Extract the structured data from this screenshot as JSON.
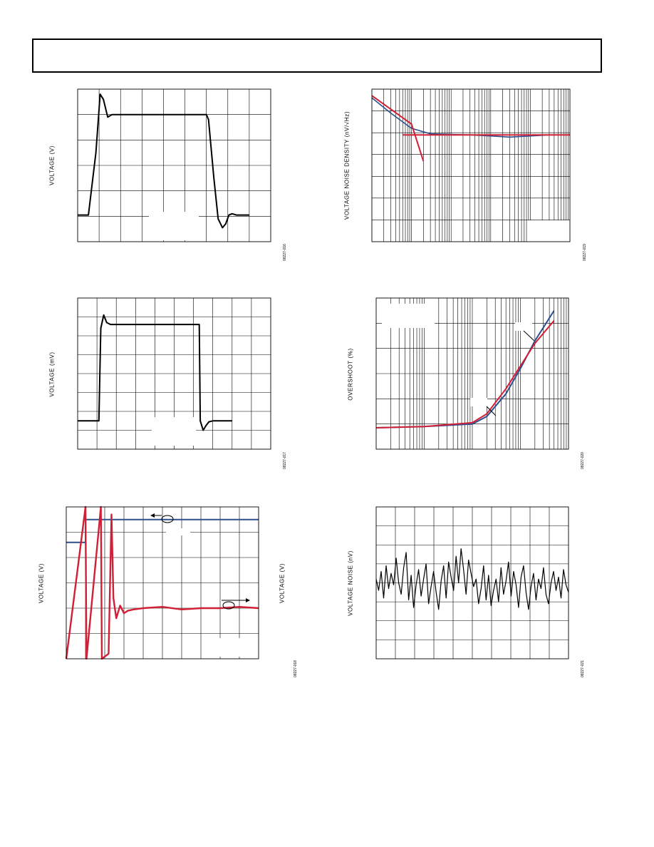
{
  "colors": {
    "trace_black": "#000000",
    "trace_red": "#d11f36",
    "trace_blue": "#2d4f8e"
  },
  "fig_ids": {
    "c1": "08227-016",
    "c2": "08227-019",
    "c3": "08227-017",
    "c4": "08227-020",
    "c5": "08227-018",
    "c6": "08227-021"
  },
  "chart_data": [
    {
      "id": "c1",
      "type": "line",
      "title": "",
      "xlabel": "",
      "ylabel": "VOLTAGE (V)",
      "grid": true,
      "x_divisions": 8,
      "y_divisions": 6,
      "series": [
        {
          "x": [
            0,
            0.5,
            0.85,
            1.05,
            1.2,
            1.4,
            1.6,
            6.0,
            6.1,
            6.35,
            6.55,
            6.75,
            6.9,
            7.05,
            7.2,
            7.4,
            8.0
          ],
          "y": [
            1.05,
            1.05,
            3.5,
            5.8,
            5.6,
            4.9,
            5.0,
            5.0,
            4.8,
            2.5,
            0.9,
            0.55,
            0.7,
            1.05,
            1.1,
            1.05,
            1.05
          ]
        }
      ]
    },
    {
      "id": "c2",
      "type": "line",
      "title": "",
      "xlabel": "",
      "ylabel": "VOLTAGE NOISE DENSITY (nV/√Hz)",
      "grid": true,
      "log_x": true,
      "xlim": [
        1,
        100000
      ],
      "y_divisions": 7,
      "series": [
        {
          "x": [
            1,
            3,
            10,
            30,
            100,
            300,
            1000,
            3000,
            10000,
            30000
          ],
          "y": [
            6.6,
            5.9,
            5.2,
            4.95,
            4.92,
            4.9,
            4.85,
            4.8,
            4.85,
            4.9
          ]
        },
        {
          "x": [
            1,
            10,
            20
          ],
          "y": [
            6.7,
            5.4,
            3.7
          ]
        },
        {
          "x": [
            6,
            100000
          ],
          "y": [
            4.9,
            4.9
          ]
        }
      ]
    },
    {
      "id": "c3",
      "type": "line",
      "title": "",
      "xlabel": "",
      "ylabel": "VOLTAGE (mV)",
      "grid": true,
      "x_divisions": 10,
      "y_divisions": 8,
      "series": [
        {
          "x": [
            0,
            1.1,
            1.2,
            1.35,
            1.5,
            1.7,
            2.0,
            6.3,
            6.35,
            6.5,
            6.65,
            6.8,
            7.0,
            7.2,
            8.0
          ],
          "y": [
            1.5,
            1.5,
            6.4,
            7.1,
            6.7,
            6.6,
            6.6,
            6.6,
            1.5,
            1.0,
            1.25,
            1.45,
            1.5,
            1.5,
            1.5
          ]
        }
      ]
    },
    {
      "id": "c4",
      "type": "line",
      "title": "",
      "xlabel": "",
      "ylabel": "OVERSHOOT (%)",
      "grid": true,
      "log_x": true,
      "xlim": [
        1,
        10000
      ],
      "y_divisions": 6,
      "series": [
        {
          "x": [
            1,
            10,
            100,
            200,
            500,
            1000,
            2000,
            5000
          ],
          "y": [
            0.85,
            0.9,
            1.0,
            1.3,
            2.2,
            3.2,
            4.3,
            5.5
          ]
        },
        {
          "x": [
            1,
            10,
            100,
            200,
            500,
            1000,
            2000,
            5000
          ],
          "y": [
            0.85,
            0.9,
            1.05,
            1.4,
            2.4,
            3.3,
            4.2,
            5.1
          ]
        }
      ]
    },
    {
      "id": "c5",
      "type": "line",
      "title": "",
      "xlabel": "",
      "ylabel": "VOLTAGE (V)",
      "ylabel_right": "VOLTAGE (V)",
      "grid": true,
      "x_divisions": 10,
      "y_divisions": 6,
      "series": [
        {
          "x": [
            0,
            1,
            1,
            10
          ],
          "y": [
            4.6,
            4.6,
            5.5,
            5.5
          ]
        },
        {
          "x": [
            0,
            1.0,
            1.05,
            1.8,
            1.85,
            2.2,
            2.35,
            2.45,
            2.6,
            2.8,
            3.0,
            3.2,
            3.5,
            4,
            5,
            6,
            7,
            8,
            9,
            10
          ],
          "y": [
            0,
            6,
            0,
            6,
            0,
            0.2,
            5.7,
            2.4,
            1.6,
            2.1,
            1.8,
            1.9,
            1.95,
            2.0,
            2.05,
            1.95,
            2.0,
            2.0,
            2.05,
            2.0
          ]
        }
      ]
    },
    {
      "id": "c6",
      "type": "line",
      "title": "",
      "xlabel": "",
      "ylabel": "VOLTAGE NOISE (nV)",
      "grid": true,
      "x_divisions": 10,
      "y_divisions": 8,
      "series": [
        {
          "y": [
            4.2,
            3.6,
            4.6,
            3.2,
            4.9,
            3.7,
            4.5,
            3.9,
            5.3,
            4.0,
            3.4,
            4.8,
            5.6,
            3.1,
            4.4,
            2.7,
            3.9,
            4.7,
            3.3,
            4.2,
            5.0,
            2.9,
            3.8,
            4.6,
            3.5,
            2.6,
            4.1,
            4.9,
            3.2,
            5.1,
            4.3,
            3.6,
            5.4,
            4.0,
            5.8,
            4.7,
            3.4,
            5.2,
            4.5,
            3.8,
            4.2,
            2.9,
            3.7,
            4.9,
            3.1,
            4.4,
            2.8,
            3.6,
            4.2,
            3.0,
            4.8,
            3.4,
            4.1,
            5.1,
            3.3,
            4.6,
            3.9,
            2.7,
            4.3,
            4.9,
            3.5,
            2.6,
            3.8,
            4.5,
            3.1,
            4.2,
            3.7,
            4.8,
            3.4,
            2.9,
            4.0,
            4.6,
            3.6,
            4.3,
            3.2,
            4.7,
            3.9,
            3.5
          ]
        }
      ]
    }
  ]
}
